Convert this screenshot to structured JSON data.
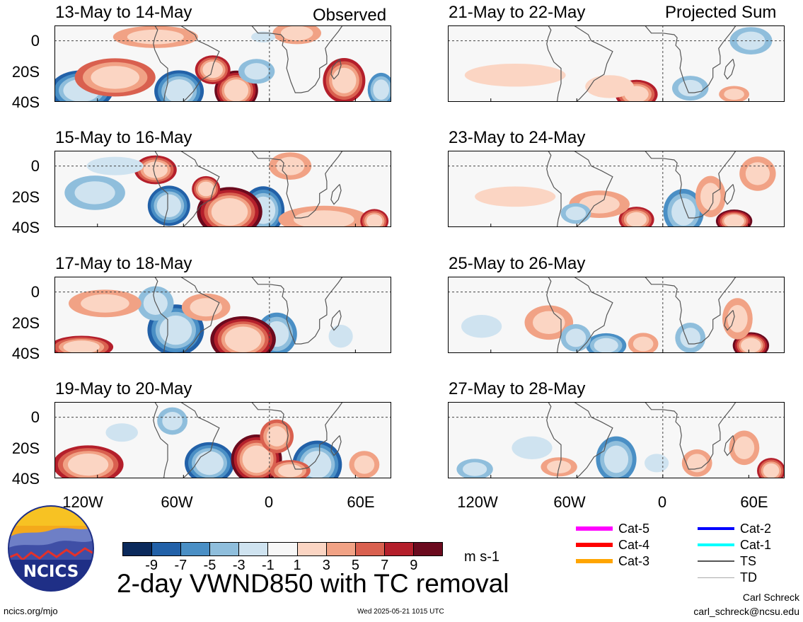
{
  "panels": [
    {
      "title": "13-May to 14-May",
      "tag": "Observed"
    },
    {
      "title": "15-May to 16-May",
      "tag": ""
    },
    {
      "title": "17-May to 18-May",
      "tag": ""
    },
    {
      "title": "19-May to 20-May",
      "tag": ""
    },
    {
      "title": "21-May to 22-May",
      "tag": "Projected Sum"
    },
    {
      "title": "23-May to 24-May",
      "tag": ""
    },
    {
      "title": "25-May to 26-May",
      "tag": ""
    },
    {
      "title": "27-May to 28-May",
      "tag": ""
    }
  ],
  "axes": {
    "y_ticks": [
      "0",
      "20S",
      "40S"
    ],
    "x_ticks": [
      "120W",
      "60W",
      "0",
      "60E"
    ]
  },
  "colorbar": {
    "labels": [
      "-9",
      "-7",
      "-5",
      "-3",
      "-1",
      "1",
      "3",
      "5",
      "7",
      "9"
    ],
    "colors": [
      "#0b2a5c",
      "#2261a8",
      "#4a8fc5",
      "#8fbedc",
      "#cfe3f0",
      "#f7f7f7",
      "#fbd5c3",
      "#f1a285",
      "#d9604f",
      "#b41f2b",
      "#6b0a1e"
    ],
    "unit": "m s-1"
  },
  "legend": [
    {
      "label": "Cat-5",
      "color": "#ff00ff"
    },
    {
      "label": "Cat-4",
      "color": "#ff0000"
    },
    {
      "label": "Cat-3",
      "color": "#ffa500"
    },
    {
      "label": "Cat-2",
      "color": "#0000ff"
    },
    {
      "label": "Cat-1",
      "color": "#00ffff"
    },
    {
      "label": "TS",
      "color": "#555555"
    },
    {
      "label": "TD",
      "color": "#aaaaaa"
    }
  ],
  "main_title": "2-day VWND850 with TC removal",
  "logo_text": "NCICS",
  "footer": {
    "left": "ncics.org/mjo",
    "center": "Wed 2025-05-21 1015 UTC",
    "author": "Carl Schreck",
    "email": "carl_schreck@ncsu.edu"
  }
}
